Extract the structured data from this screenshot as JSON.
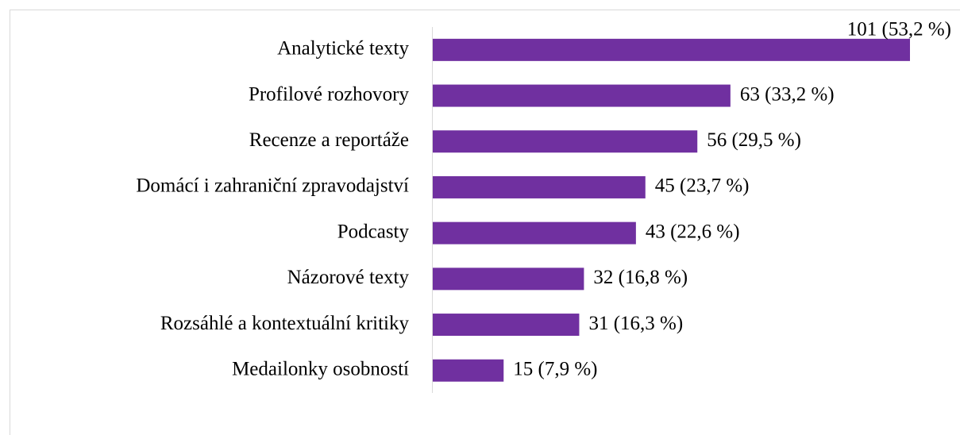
{
  "chart_data": {
    "type": "barh",
    "categories": [
      "Analytické texty",
      "Profilové rozhovory",
      "Recenze a reportáže",
      "Domácí i zahraniční zpravodajství",
      "Podcasty",
      "Názorové texty",
      "Rozsáhlé a kontextuální kritiky",
      "Medailonky osobností"
    ],
    "values": [
      101,
      63,
      56,
      45,
      43,
      32,
      31,
      15
    ],
    "value_labels": [
      "101 (53,2 %)",
      "63 (33,2 %)",
      "56 (29,5 %)",
      "45 (23,7 %)",
      "43 (22,6 %)",
      "32 (16,8 %)",
      "31 (16,3 %)",
      "15 (7,9 %)"
    ],
    "color": "#7030a0"
  }
}
